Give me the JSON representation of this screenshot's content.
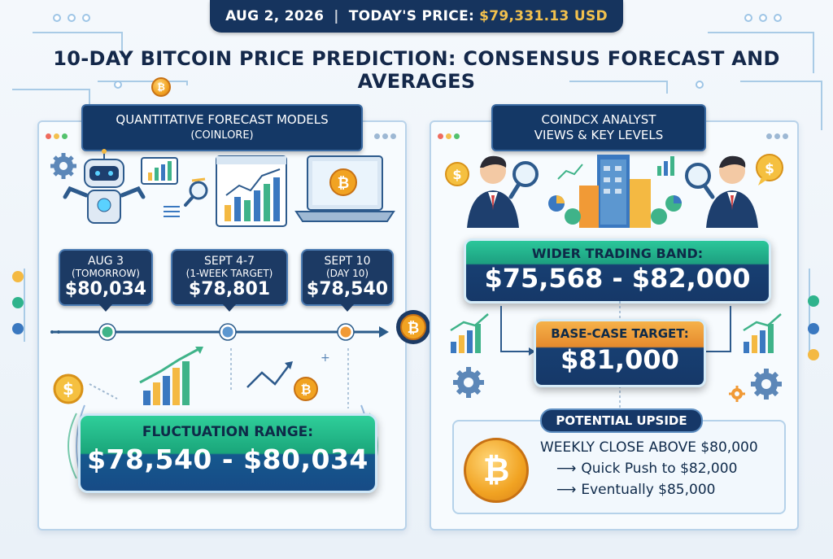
{
  "banner": {
    "date": "AUG 2, 2026",
    "separator": "|",
    "price_label": "TODAY'S PRICE:",
    "price_value": "$79,331.13 USD"
  },
  "title": "10-DAY BITCOIN PRICE PREDICTION: CONSENSUS FORECAST AND AVERAGES",
  "left_panel": {
    "header_line1": "QUANTITATIVE FORECAST MODELS",
    "header_line2": "(COINLORE)",
    "callouts": [
      {
        "line1": "AUG 3",
        "line2": "(TOMORROW)",
        "value": "$80,034"
      },
      {
        "line1": "SEPT 4-7",
        "line2": "(1-WEEK TARGET)",
        "value": "$78,801"
      },
      {
        "line1": "SEPT 10",
        "line2": "(DAY 10)",
        "value": "$78,540"
      }
    ],
    "range_label": "FLUCTUATION RANGE:",
    "range_value": "$78,540 - $80,034"
  },
  "right_panel": {
    "header_line1": "COINDCX ANALYST",
    "header_line2": "VIEWS & KEY LEVELS",
    "band_label": "WIDER TRADING BAND:",
    "band_value": "$75,568 - $82,000",
    "target_label": "BASE-CASE TARGET:",
    "target_value": "$81,000",
    "upside_label": "POTENTIAL UPSIDE",
    "upside_lines": [
      "WEEKLY CLOSE ABOVE $80,000",
      "Quick Push to $82,000",
      "Eventually $85,000"
    ]
  },
  "icons": {
    "coin_symbol": "₿",
    "dollar_symbol": "$",
    "arrow": "⟶"
  },
  "colors": {
    "navy": "#163868",
    "green": "#1aa57a",
    "orange": "#e58a2d",
    "gold": "#f2c14e"
  }
}
